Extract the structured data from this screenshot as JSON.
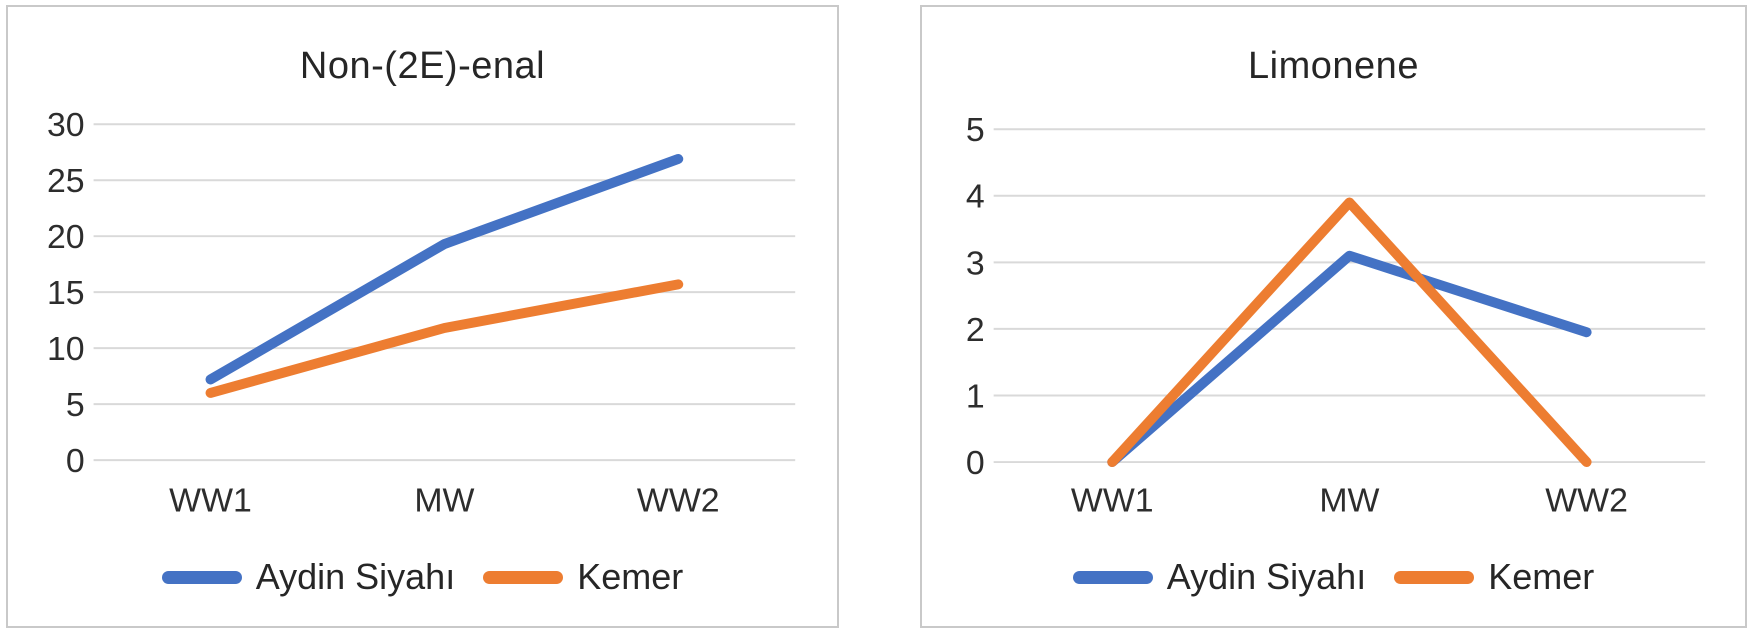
{
  "figure": {
    "background": "#ffffff",
    "panel_border_color": "#c9c9c9"
  },
  "palette": {
    "aydin_siyahi": "#4472c4",
    "kemer": "#ed7d31",
    "gridline": "#d9d9d9",
    "text": "#2d2d2d"
  },
  "chart_data": [
    {
      "type": "line",
      "title": "Non-(2E)-enal",
      "categories": [
        "WW1",
        "MW",
        "WW2"
      ],
      "series": [
        {
          "name": "Aydin Siyahı",
          "color": "#4472c4",
          "values": [
            7.2,
            19.3,
            26.9
          ]
        },
        {
          "name": "Kemer",
          "color": "#ed7d31",
          "values": [
            6.0,
            11.8,
            15.7
          ]
        }
      ],
      "ylim": [
        0,
        30
      ],
      "yticks": [
        0,
        5,
        10,
        15,
        20,
        25,
        30
      ],
      "xlabel": "",
      "ylabel": "",
      "grid": true,
      "legend_position": "bottom"
    },
    {
      "type": "line",
      "title": "Limonene",
      "categories": [
        "WW1",
        "MW",
        "WW2"
      ],
      "series": [
        {
          "name": "Aydin Siyahı",
          "color": "#4472c4",
          "values": [
            0,
            3.1,
            1.95
          ]
        },
        {
          "name": "Kemer",
          "color": "#ed7d31",
          "values": [
            0,
            3.9,
            0
          ]
        }
      ],
      "ylim": [
        0,
        5
      ],
      "yticks": [
        0,
        1,
        2,
        3,
        4,
        5
      ],
      "xlabel": "",
      "ylabel": "",
      "grid": true,
      "legend_position": "bottom"
    }
  ]
}
